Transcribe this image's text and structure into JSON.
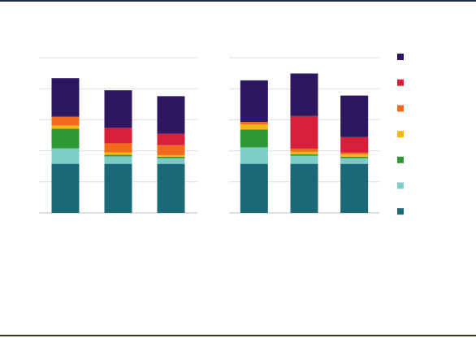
{
  "chart_data": [
    {
      "type": "stacked-bar",
      "categories": [
        null,
        null,
        null
      ],
      "ylim": [
        0,
        5
      ],
      "yticks": [
        0,
        1,
        2,
        3,
        4,
        5
      ],
      "grid": true,
      "series": [
        {
          "color": "#1a6878",
          "values": [
            1.58,
            1.58,
            1.58
          ]
        },
        {
          "color": "#7ccdc8",
          "values": [
            0.5,
            0.24,
            0.18
          ]
        },
        {
          "color": "#2f9a35",
          "values": [
            0.63,
            0.05,
            0.05
          ]
        },
        {
          "color": "#f7b815",
          "values": [
            0.1,
            0.08,
            0.05
          ]
        },
        {
          "color": "#f26b1c",
          "values": [
            0.29,
            0.29,
            0.32
          ]
        },
        {
          "color": "#d71f3a",
          "values": [
            0,
            0.5,
            0.37
          ]
        },
        {
          "color": "#2d1761",
          "values": [
            1.24,
            1.21,
            1.21
          ]
        }
      ]
    },
    {
      "type": "stacked-bar",
      "categories": [
        null,
        null,
        null
      ],
      "ylim": [
        0,
        5
      ],
      "yticks": [
        0,
        1,
        2,
        3,
        4,
        5
      ],
      "grid": true,
      "series": [
        {
          "color": "#1a6878",
          "values": [
            1.58,
            1.58,
            1.58
          ]
        },
        {
          "color": "#7ccdc8",
          "values": [
            0.53,
            0.26,
            0.18
          ]
        },
        {
          "color": "#2f9a35",
          "values": [
            0.58,
            0.05,
            0.05
          ]
        },
        {
          "color": "#f7b815",
          "values": [
            0.16,
            0.08,
            0.08
          ]
        },
        {
          "color": "#f26b1c",
          "values": [
            0.08,
            0.1,
            0.05
          ]
        },
        {
          "color": "#d71f3a",
          "values": [
            0,
            1.05,
            0.5
          ]
        },
        {
          "color": "#2d1761",
          "values": [
            1.34,
            1.37,
            1.34
          ]
        }
      ]
    }
  ]
}
